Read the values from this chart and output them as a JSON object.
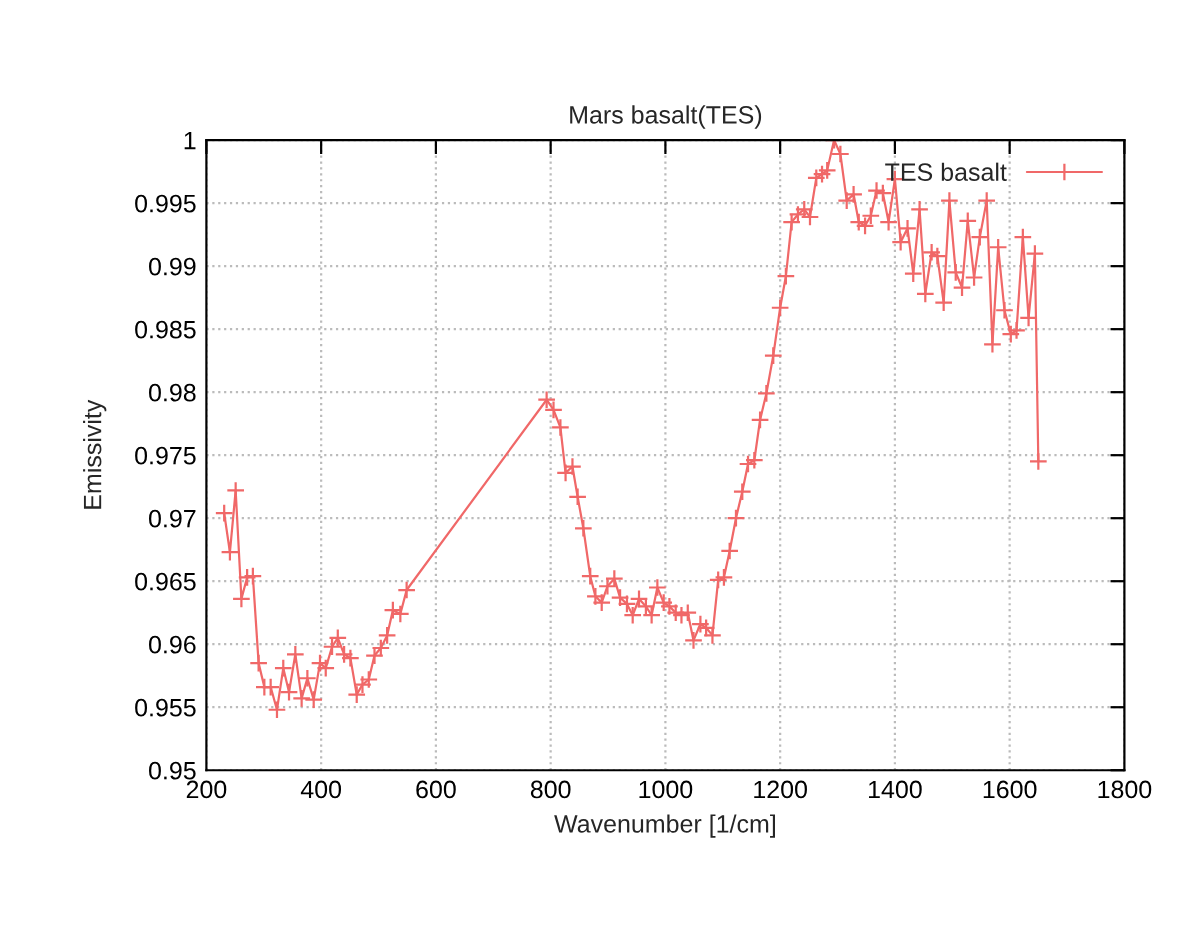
{
  "chart_data": {
    "type": "line",
    "title": "Mars basalt(TES)",
    "xlabel": "Wavenumber [1/cm]",
    "ylabel": "Emissivity",
    "xlim": [
      200,
      1800
    ],
    "xticks": [
      200,
      400,
      600,
      800,
      1000,
      1200,
      1400,
      1600,
      1800
    ],
    "ylim": [
      0.95,
      1
    ],
    "yticks": [
      0.95,
      0.955,
      0.96,
      0.965,
      0.97,
      0.975,
      0.98,
      0.985,
      0.99,
      0.995,
      1
    ],
    "grid": true,
    "legend": "top right",
    "marker": "cross",
    "line_style": "solid",
    "series": [
      {
        "name": "TES basalt",
        "color": "#f06868",
        "x": [
          231,
          241,
          251,
          261,
          271,
          281,
          291,
          301,
          312,
          323,
          334,
          344,
          355,
          366,
          376,
          387,
          398,
          408,
          419,
          429,
          440,
          451,
          462,
          472,
          483,
          493,
          504,
          515,
          525,
          538,
          549,
          793,
          805,
          817,
          826,
          838,
          847,
          857,
          869,
          878,
          889,
          899,
          911,
          921,
          933,
          943,
          954,
          966,
          976,
          986,
          997,
          1007,
          1018,
          1028,
          1039,
          1049,
          1061,
          1071,
          1082,
          1092,
          1102,
          1112,
          1123,
          1134,
          1144,
          1155,
          1165,
          1176,
          1188,
          1200,
          1210,
          1220,
          1231,
          1242,
          1252,
          1263,
          1273,
          1282,
          1294,
          1305,
          1316,
          1328,
          1337,
          1348,
          1358,
          1368,
          1379,
          1389,
          1400,
          1410,
          1422,
          1432,
          1443,
          1453,
          1464,
          1474,
          1485,
          1495,
          1506,
          1517,
          1527,
          1538,
          1548,
          1560,
          1570,
          1580,
          1591,
          1602,
          1612,
          1623,
          1633,
          1644,
          1650
        ],
        "values": [
          0.9704,
          0.9673,
          0.9722,
          0.9636,
          0.9653,
          0.9654,
          0.9585,
          0.9566,
          0.9566,
          0.9548,
          0.9581,
          0.9562,
          0.9592,
          0.9557,
          0.9573,
          0.9556,
          0.9585,
          0.9581,
          0.9598,
          0.9605,
          0.9592,
          0.9589,
          0.956,
          0.9568,
          0.9572,
          0.9591,
          0.9597,
          0.9607,
          0.9627,
          0.9624,
          0.9643,
          0.9794,
          0.9786,
          0.9772,
          0.9736,
          0.9741,
          0.9717,
          0.9692,
          0.9654,
          0.9638,
          0.9633,
          0.9646,
          0.9652,
          0.9637,
          0.9632,
          0.9623,
          0.9636,
          0.963,
          0.9623,
          0.9645,
          0.9633,
          0.963,
          0.9625,
          0.9623,
          0.9625,
          0.9603,
          0.9616,
          0.9613,
          0.9607,
          0.9651,
          0.9653,
          0.9674,
          0.97,
          0.9721,
          0.9743,
          0.9746,
          0.9778,
          0.9799,
          0.9829,
          0.9867,
          0.9892,
          0.9935,
          0.9941,
          0.9945,
          0.9939,
          0.997,
          0.9973,
          0.9976,
          1.0,
          0.9989,
          0.9952,
          0.9957,
          0.9935,
          0.9932,
          0.994,
          0.996,
          0.9958,
          0.9935,
          0.9969,
          0.9919,
          0.993,
          0.9894,
          0.9945,
          0.9878,
          0.9911,
          0.9908,
          0.9871,
          0.9952,
          0.9895,
          0.9883,
          0.9936,
          0.9891,
          0.9923,
          0.9952,
          0.9838,
          0.9915,
          0.9865,
          0.9846,
          0.9849,
          0.9923,
          0.9859,
          0.991,
          0.9745
        ]
      }
    ]
  }
}
